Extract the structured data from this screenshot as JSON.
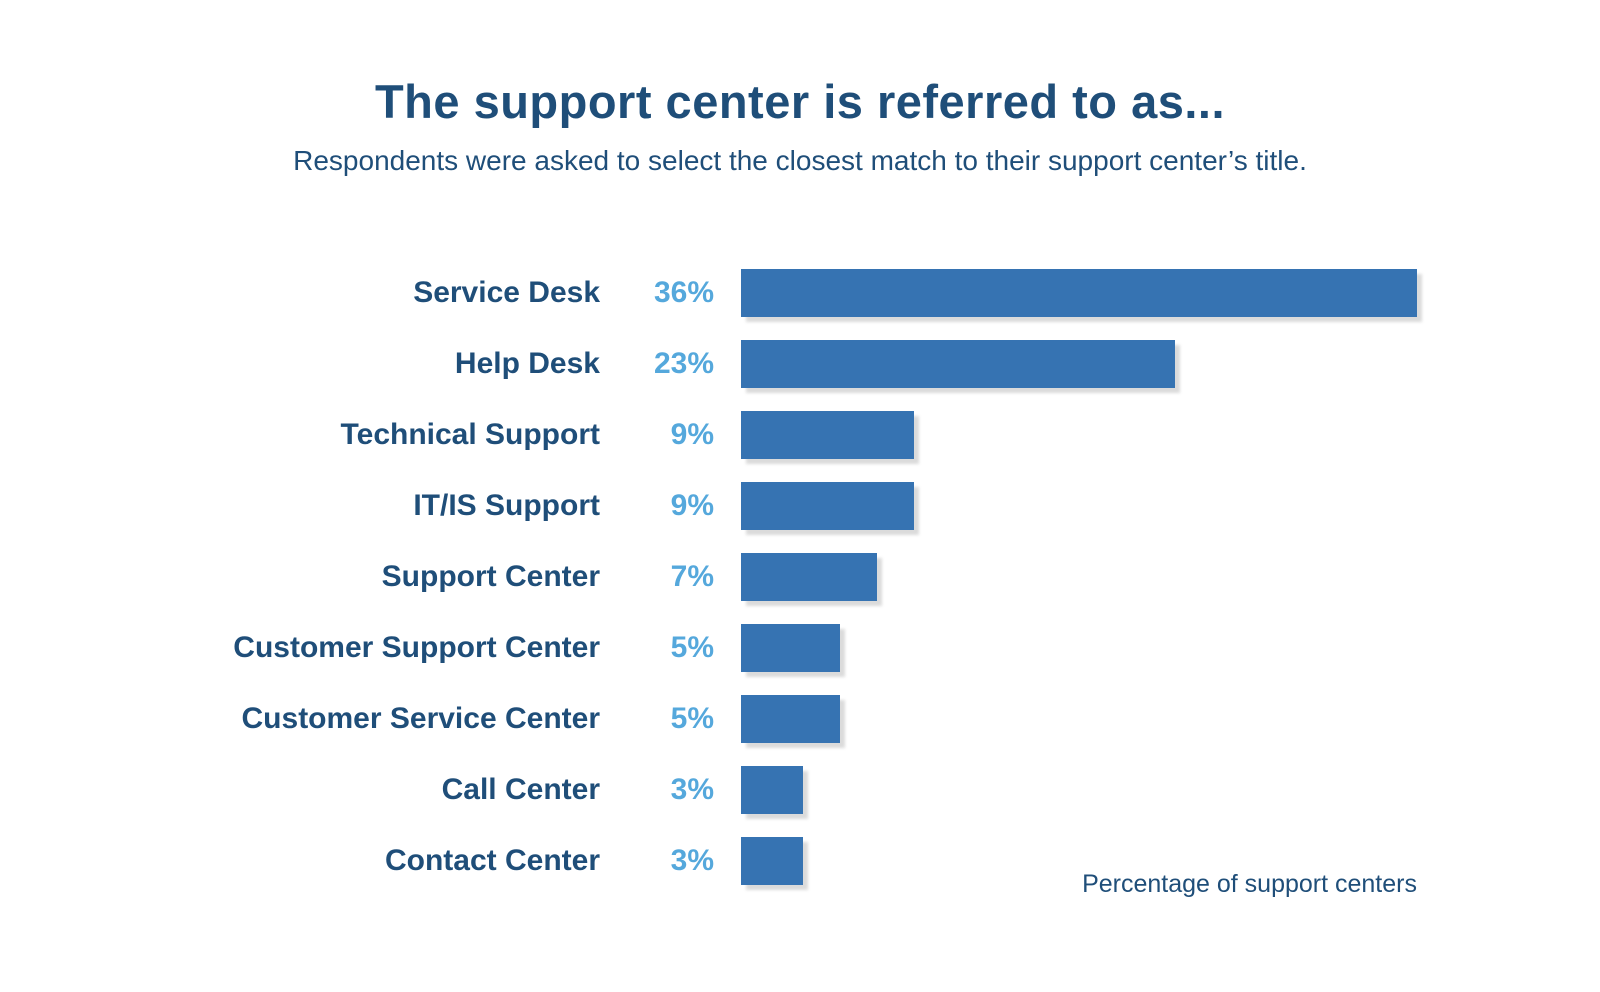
{
  "page": {
    "title": "The support center is referred to as...",
    "subtitle": "Respondents were asked to select the closest match to their support center’s title.",
    "footnote": "Percentage of support centers"
  },
  "colors": {
    "title_text": "#1F4E79",
    "label_text": "#1F4E79",
    "percent_text": "#55A8DC",
    "bar_fill": "#3673B2",
    "bar_shadow": "#DBDBDB",
    "background": "#FFFFFF"
  },
  "chart_data": {
    "type": "bar",
    "orientation": "horizontal",
    "title": "The support center is referred to as...",
    "subtitle": "Respondents were asked to select the closest match to their support center’s title.",
    "xlabel": "Percentage of support centers",
    "ylabel": "",
    "categories": [
      "Service Desk",
      "Help Desk",
      "Technical Support",
      "IT/IS Support",
      "Support Center",
      "Customer Support Center",
      "Customer Service Center",
      "Call Center",
      "Contact Center"
    ],
    "values": [
      36,
      23,
      9,
      9,
      7,
      5,
      5,
      3,
      3
    ],
    "value_labels": [
      "36%",
      "23%",
      "9%",
      "9%",
      "7%",
      "5%",
      "5%",
      "3%",
      "3%"
    ],
    "xlim": [
      0,
      36
    ],
    "grid": false,
    "legend": "none",
    "value_label_position": "left-of-bar"
  }
}
